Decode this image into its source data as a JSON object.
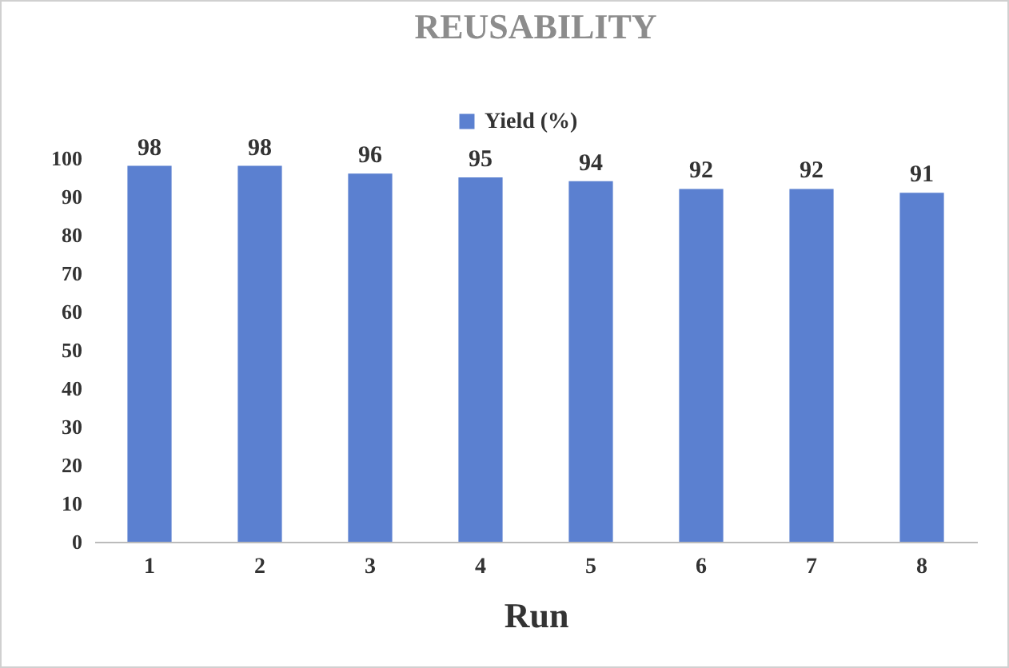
{
  "chart_data": {
    "type": "bar",
    "title": "REUSABILITY",
    "xlabel": "Run",
    "categories": [
      "1",
      "2",
      "3",
      "4",
      "5",
      "6",
      "7",
      "8"
    ],
    "series": [
      {
        "name": "Yield (%)",
        "color": "#5b80d0",
        "values": [
          98,
          98,
          96,
          95,
          94,
          92,
          92,
          91
        ]
      }
    ],
    "ylim": [
      0,
      100
    ],
    "yticks": [
      0,
      10,
      20,
      30,
      40,
      50,
      60,
      70,
      80,
      90,
      100
    ],
    "data_labels": true,
    "legend": "top",
    "grid": false
  }
}
